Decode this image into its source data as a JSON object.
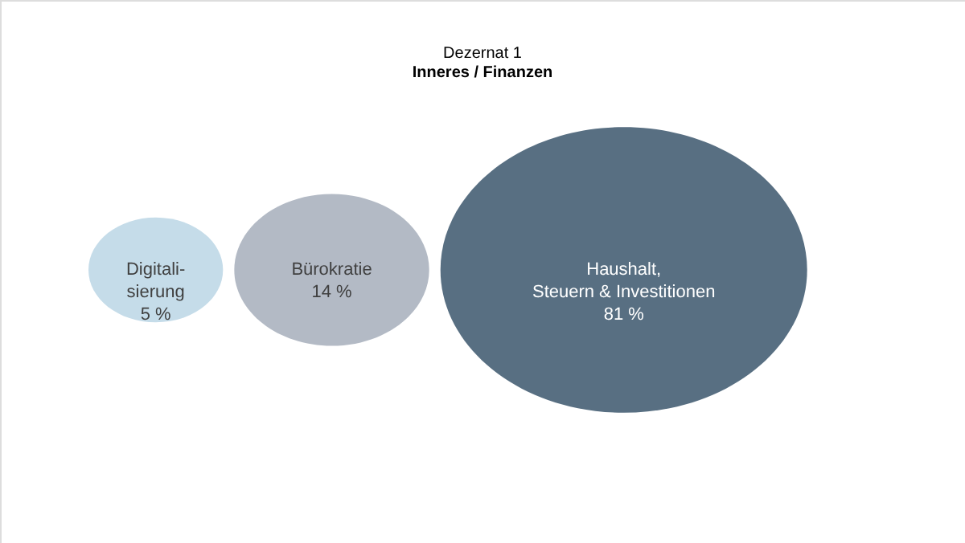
{
  "chart_data": {
    "type": "other",
    "title": "Dezernat 1",
    "subtitle": "Inneres / Finanzen",
    "categories": [
      "Digitali-\nsierung",
      "Bürokratie",
      "Haushalt,\nSteuern & Investitionen"
    ],
    "values": [
      5,
      14,
      81
    ],
    "value_labels": [
      "5 %",
      "14 %",
      "81 %"
    ],
    "colors": [
      "#c5dce9",
      "#b3bac5",
      "#586f82"
    ]
  }
}
